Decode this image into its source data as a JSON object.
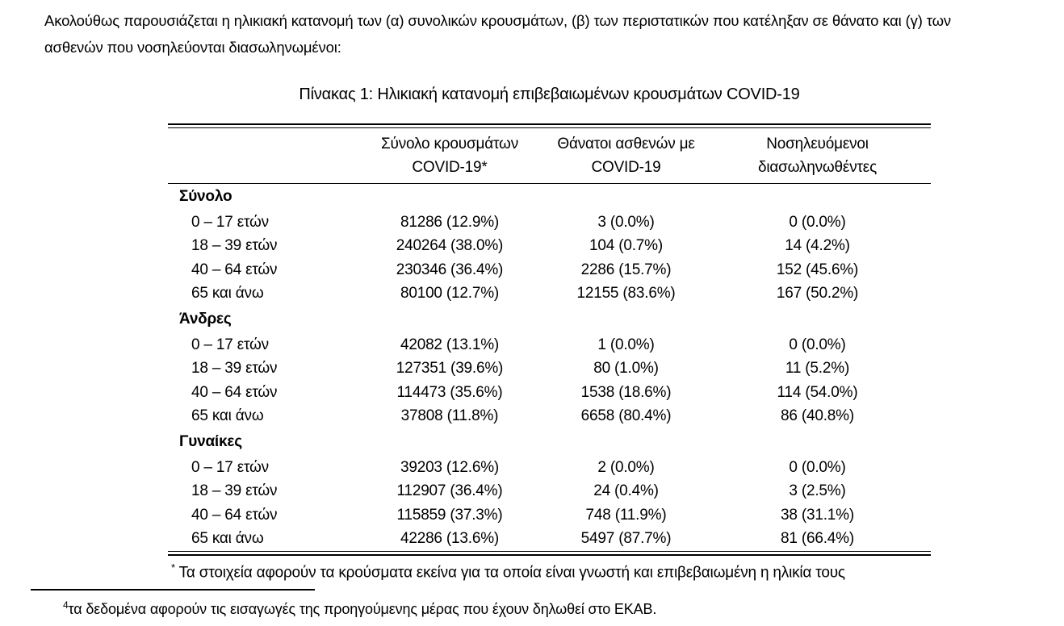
{
  "intro": {
    "line1": "Ακολούθως παρουσιάζεται η ηλικιακή κατανομή των (α) συνολικών κρουσμάτων, (β) των περιστατικών που κατέληξαν σε θάνατο και (γ) των",
    "line2": "ασθενών που νοσηλεύονται διασωληνωμένοι:"
  },
  "table": {
    "title": "Πίνακας 1: Ηλικιακή κατανομή επιβεβαιωμένων κρουσμάτων COVID-19",
    "columns": [
      {
        "line1": "Σύνολο κρουσμάτων",
        "line2": "COVID-19*"
      },
      {
        "line1": "Θάνατοι ασθενών με",
        "line2": "COVID-19"
      },
      {
        "line1": "Νοσηλευόμενοι",
        "line2": "διασωληνωθέντες"
      }
    ],
    "sections": [
      {
        "label": "Σύνολο",
        "rows": [
          {
            "age": "0 – 17 ετών",
            "cases": "81286 (12.9%)",
            "deaths": "3 (0.0%)",
            "intubated": "0 (0.0%)"
          },
          {
            "age": "18 – 39 ετών",
            "cases": "240264 (38.0%)",
            "deaths": "104 (0.7%)",
            "intubated": "14 (4.2%)"
          },
          {
            "age": "40 – 64 ετών",
            "cases": "230346 (36.4%)",
            "deaths": "2286 (15.7%)",
            "intubated": "152 (45.6%)"
          },
          {
            "age": "65 και άνω",
            "cases": "80100 (12.7%)",
            "deaths": "12155 (83.6%)",
            "intubated": "167 (50.2%)"
          }
        ]
      },
      {
        "label": "Άνδρες",
        "rows": [
          {
            "age": "0 – 17 ετών",
            "cases": "42082 (13.1%)",
            "deaths": "1 (0.0%)",
            "intubated": "0 (0.0%)"
          },
          {
            "age": "18 – 39 ετών",
            "cases": "127351 (39.6%)",
            "deaths": "80 (1.0%)",
            "intubated": "11 (5.2%)"
          },
          {
            "age": "40 – 64 ετών",
            "cases": "114473 (35.6%)",
            "deaths": "1538 (18.6%)",
            "intubated": "114 (54.0%)"
          },
          {
            "age": "65 και άνω",
            "cases": "37808 (11.8%)",
            "deaths": "6658 (80.4%)",
            "intubated": "86 (40.8%)"
          }
        ]
      },
      {
        "label": "Γυναίκες",
        "rows": [
          {
            "age": "0 – 17 ετών",
            "cases": "39203 (12.6%)",
            "deaths": "2 (0.0%)",
            "intubated": "0 (0.0%)"
          },
          {
            "age": "18 – 39 ετών",
            "cases": "112907 (36.4%)",
            "deaths": "24 (0.4%)",
            "intubated": "3 (2.5%)"
          },
          {
            "age": "40 – 64 ετών",
            "cases": "115859 (37.3%)",
            "deaths": "748 (11.9%)",
            "intubated": "38 (31.1%)"
          },
          {
            "age": "65 και άνω",
            "cases": "42286 (13.6%)",
            "deaths": "5497 (87.7%)",
            "intubated": "81 (66.4%)"
          }
        ]
      }
    ],
    "footnote_marker": "*",
    "footnote": "Τα στοιχεία αφορούν τα κρούσματα εκείνα για τα οποία είναι γνωστή και επιβεβαιωμένη η ηλικία τους"
  },
  "page_footnote": {
    "marker": "4",
    "text": "τα δεδομένα αφορούν τις εισαγωγές της προηγούμενης μέρας που έχουν δηλωθεί στο ΕΚΑΒ."
  },
  "colors": {
    "text": "#000000",
    "background": "#ffffff",
    "rule": "#000000"
  }
}
